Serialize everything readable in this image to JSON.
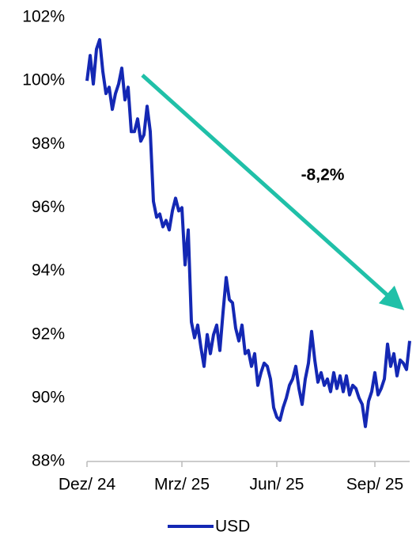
{
  "chart_data": {
    "type": "line",
    "annotation": "-8,2%",
    "categories": [
      "Dez/ 24",
      null,
      null,
      null,
      null,
      null,
      null,
      null,
      null,
      null,
      null,
      null,
      null,
      null,
      null,
      null,
      null,
      null,
      null,
      null,
      null,
      null,
      null,
      null,
      null,
      null,
      null,
      null,
      null,
      null,
      "Mrz/ 25",
      null,
      null,
      null,
      null,
      null,
      null,
      null,
      null,
      null,
      null,
      null,
      null,
      null,
      null,
      null,
      null,
      null,
      null,
      null,
      null,
      null,
      null,
      null,
      null,
      null,
      null,
      null,
      null,
      null,
      "Jun/ 25",
      null,
      null,
      null,
      null,
      null,
      null,
      null,
      null,
      null,
      null,
      null,
      null,
      null,
      null,
      null,
      null,
      null,
      null,
      null,
      null,
      null,
      null,
      null,
      null,
      null,
      null,
      null,
      null,
      null,
      null,
      "Sep/ 25",
      null,
      null,
      null,
      null,
      null,
      null,
      null,
      null,
      null,
      null,
      null
    ],
    "series": [
      {
        "name": "USD",
        "color": "#1428b4",
        "values": [
          100.0,
          100.8,
          99.9,
          101.0,
          101.3,
          100.3,
          99.6,
          99.8,
          99.1,
          99.6,
          99.9,
          100.4,
          99.4,
          99.8,
          98.4,
          98.4,
          98.8,
          98.1,
          98.3,
          99.2,
          98.4,
          96.2,
          95.7,
          95.8,
          95.4,
          95.6,
          95.3,
          95.9,
          96.3,
          95.9,
          96.0,
          94.2,
          95.3,
          92.4,
          91.9,
          92.3,
          91.6,
          91.0,
          92.0,
          91.4,
          92.0,
          92.3,
          91.5,
          92.7,
          93.8,
          93.1,
          93.0,
          92.2,
          91.8,
          92.3,
          91.4,
          91.5,
          91.0,
          91.4,
          90.4,
          90.8,
          91.1,
          91.0,
          90.6,
          89.7,
          89.4,
          89.3,
          89.7,
          90.0,
          90.4,
          90.6,
          91.0,
          90.3,
          89.8,
          90.6,
          91.1,
          92.1,
          91.2,
          90.5,
          90.8,
          90.4,
          90.6,
          90.2,
          90.8,
          90.3,
          90.7,
          90.2,
          90.7,
          90.1,
          90.4,
          90.3,
          90.0,
          89.8,
          89.1,
          89.9,
          90.2,
          90.8,
          90.1,
          90.3,
          90.6,
          91.7,
          91.0,
          91.4,
          90.7,
          91.2,
          91.1,
          90.9,
          91.8
        ]
      }
    ],
    "ylim": [
      88,
      102
    ],
    "yticks": [
      {
        "value": 88,
        "label": "88%"
      },
      {
        "value": 90,
        "label": "90%"
      },
      {
        "value": 92,
        "label": "92%"
      },
      {
        "value": 94,
        "label": "94%"
      },
      {
        "value": 96,
        "label": "96%"
      },
      {
        "value": 98,
        "label": "98%"
      },
      {
        "value": 100,
        "label": "100%"
      },
      {
        "value": 102,
        "label": "102%"
      }
    ],
    "grid": false,
    "legend": "bottom"
  }
}
